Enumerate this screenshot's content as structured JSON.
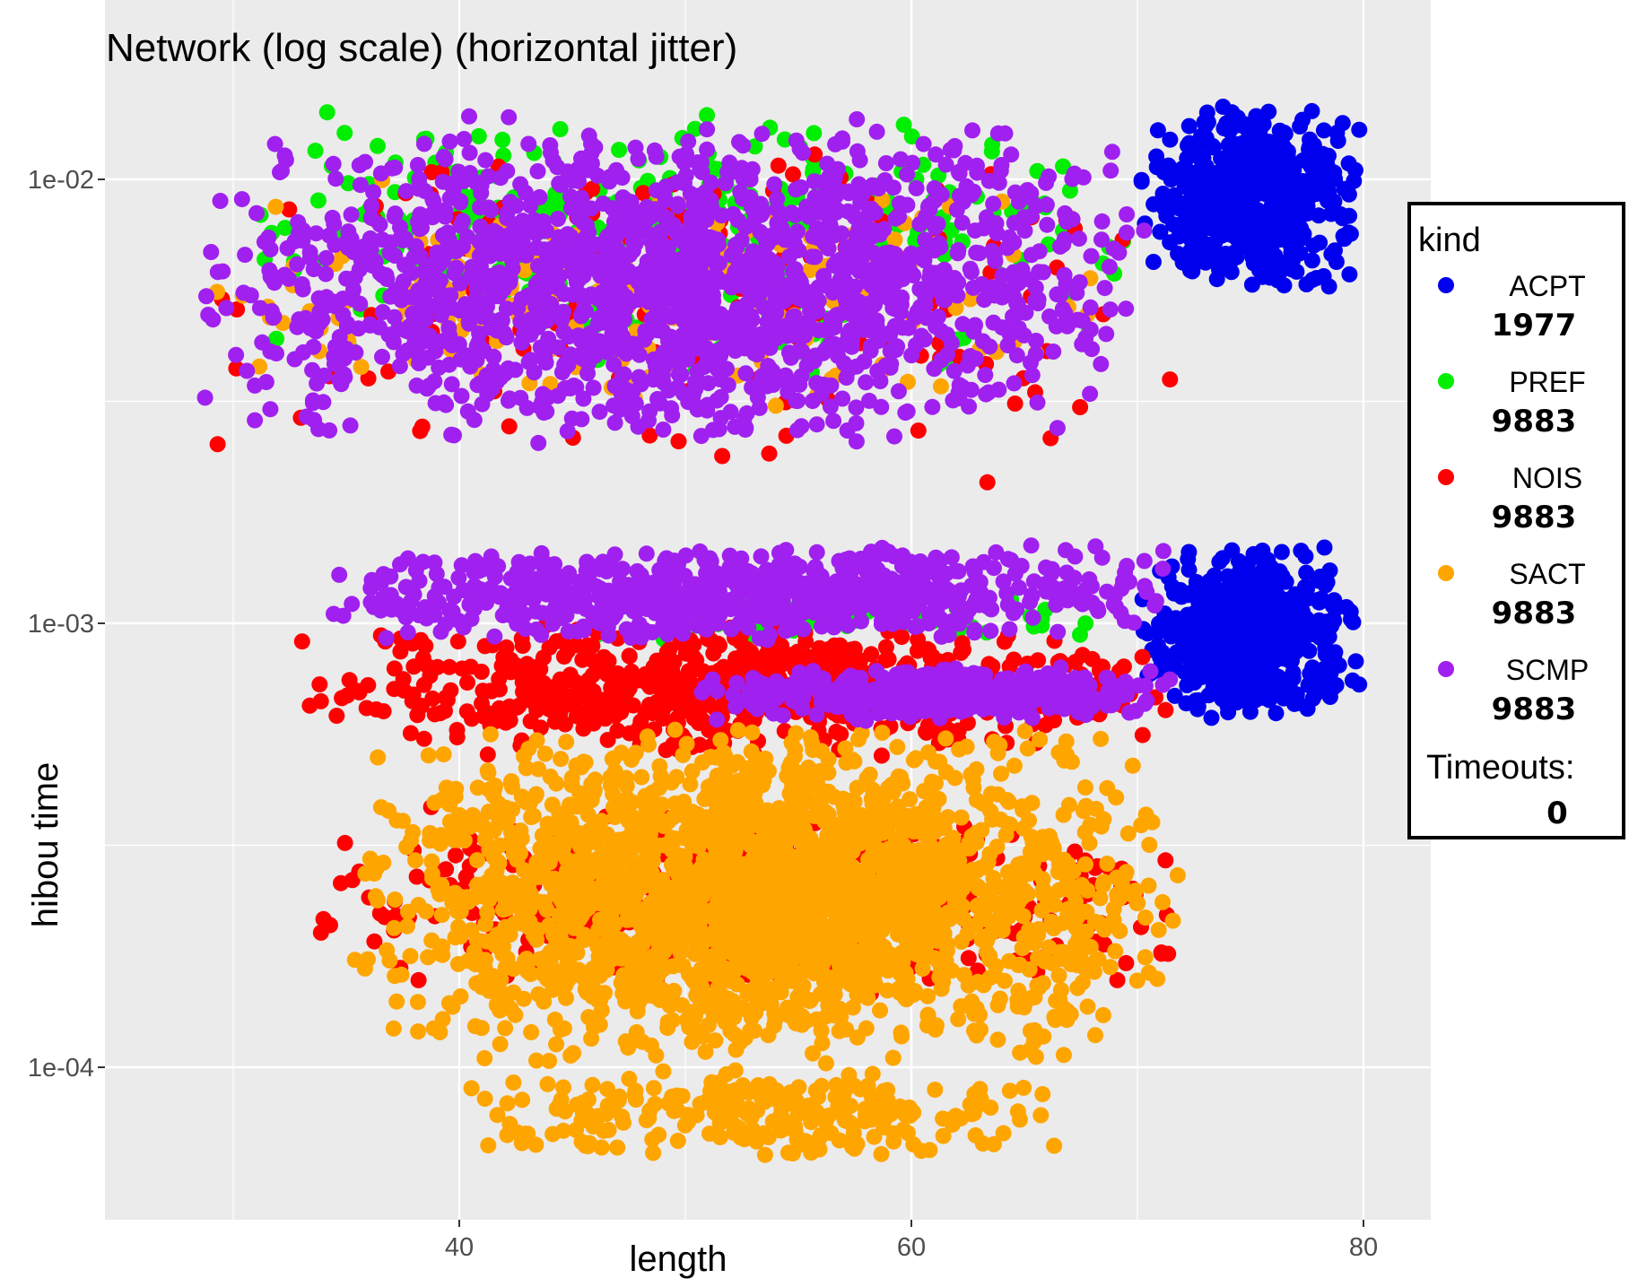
{
  "chart_data": {
    "type": "scatter",
    "title": "Network (log scale) (horizontal jitter)",
    "xlabel": "length",
    "ylabel": "hibou time",
    "x_axis": {
      "scale": "linear",
      "range": [
        22,
        81.5
      ],
      "ticks": [
        40,
        60,
        80
      ],
      "tick_labels": [
        "40",
        "60",
        "80"
      ]
    },
    "y_axis": {
      "scale": "log10",
      "range": [
        4e-05,
        0.025
      ],
      "ticks": [
        0.0001,
        0.001,
        0.01
      ],
      "tick_labels": [
        "1e-04",
        "1e-03",
        "1e-02"
      ]
    },
    "background": "#ebebeb",
    "grid": true,
    "legend": {
      "title": "kind",
      "placement": "right",
      "timeouts_label": "Timeouts:",
      "timeouts_value": "0"
    },
    "series": [
      {
        "name": "ACPT",
        "count": "1977",
        "color": "#0000ee",
        "clusters": [
          {
            "x": [
              70,
              80
            ],
            "y": [
              0.0055,
              0.015
            ],
            "n": 520
          },
          {
            "x": [
              70,
              80
            ],
            "y": [
              0.0006,
              0.0015
            ],
            "n": 560
          }
        ]
      },
      {
        "name": "PREF",
        "count": "9883",
        "color": "#00ee00",
        "clusters": [
          {
            "x": [
              28,
              70
            ],
            "y": [
              0.0035,
              0.015
            ],
            "n": 380
          },
          {
            "x": [
              45,
              68
            ],
            "y": [
              0.0009,
              0.0012
            ],
            "n": 60
          }
        ]
      },
      {
        "name": "NOIS",
        "count": "9883",
        "color": "#ff0000",
        "clusters": [
          {
            "x": [
              28,
              72
            ],
            "y": [
              0.002,
              0.014
            ],
            "n": 160
          },
          {
            "x": [
              32,
              72
            ],
            "y": [
              0.0005,
              0.001
            ],
            "n": 700
          },
          {
            "x": [
              33,
              73
            ],
            "y": [
              0.00014,
              0.0004
            ],
            "n": 500
          }
        ]
      },
      {
        "name": "SACT",
        "count": "9883",
        "color": "#ffa500",
        "clusters": [
          {
            "x": [
              28,
              70
            ],
            "y": [
              0.003,
              0.01
            ],
            "n": 200
          },
          {
            "x": [
              35,
              72
            ],
            "y": [
              0.0001,
              0.0006
            ],
            "n": 2300
          },
          {
            "x": [
              40,
              68
            ],
            "y": [
              6e-05,
              0.0001
            ],
            "n": 250
          }
        ]
      },
      {
        "name": "SCMP",
        "count": "9883",
        "color": "#a020f0",
        "clusters": [
          {
            "x": [
              28,
              71
            ],
            "y": [
              0.0025,
              0.014
            ],
            "n": 1700
          },
          {
            "x": [
              34,
              72
            ],
            "y": [
              0.0009,
              0.0015
            ],
            "n": 750
          },
          {
            "x": [
              50,
              72
            ],
            "y": [
              0.0006,
              0.0008
            ],
            "n": 420
          }
        ]
      }
    ]
  }
}
